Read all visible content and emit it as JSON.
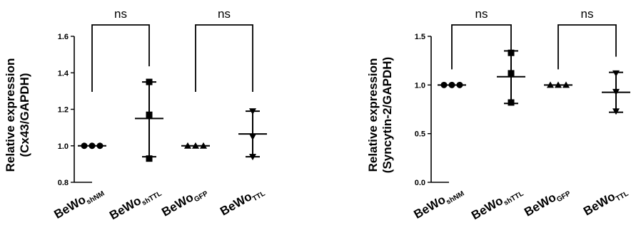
{
  "chart_data": [
    {
      "type": "scatter",
      "ylabel_lines": [
        "Relative expression",
        "(Cx43/GAPDH)"
      ],
      "ylim": [
        0.8,
        1.6
      ],
      "yticks": [
        "0.8",
        "1.0",
        "1.2",
        "1.4",
        "1.6"
      ],
      "categories": [
        {
          "base": "BeWo",
          "sub": "shNM"
        },
        {
          "base": "BeWo",
          "sub": "shTTL"
        },
        {
          "base": "BeWo",
          "sub": "GFP"
        },
        {
          "base": "BeWo",
          "sub": "TTL"
        }
      ],
      "markers": [
        "circle",
        "square",
        "triangle-up",
        "triangle-down"
      ],
      "points": [
        [
          1.0,
          1.0,
          1.0
        ],
        [
          1.35,
          1.17,
          0.93
        ],
        [
          1.0,
          1.0,
          1.0
        ],
        [
          1.19,
          1.05,
          0.94
        ]
      ],
      "mean": [
        1.0,
        1.15,
        1.0,
        1.065
      ],
      "error_low": [
        1.0,
        0.94,
        1.0,
        0.94
      ],
      "error_high": [
        1.0,
        1.35,
        1.0,
        1.19
      ],
      "comparisons": [
        {
          "groups": [
            0,
            1
          ],
          "label": "ns"
        },
        {
          "groups": [
            2,
            3
          ],
          "label": "ns"
        }
      ]
    },
    {
      "type": "scatter",
      "ylabel_lines": [
        "Relative expression",
        "(Syncytin-2/GAPDH)"
      ],
      "ylim": [
        0.0,
        1.5
      ],
      "yticks": [
        "0.0",
        "0.5",
        "1.0",
        "1.5"
      ],
      "categories": [
        {
          "base": "BeWo",
          "sub": "shNM"
        },
        {
          "base": "BeWo",
          "sub": "shTTL"
        },
        {
          "base": "BeWo",
          "sub": "GFP"
        },
        {
          "base": "BeWo",
          "sub": "TTL"
        }
      ],
      "markers": [
        "circle",
        "square",
        "triangle-up",
        "triangle-down"
      ],
      "points": [
        [
          1.0,
          1.0,
          1.0
        ],
        [
          1.33,
          1.12,
          0.82
        ],
        [
          1.0,
          1.0,
          1.0
        ],
        [
          1.12,
          0.93,
          0.73
        ]
      ],
      "mean": [
        1.0,
        1.085,
        1.0,
        0.925
      ],
      "error_low": [
        1.0,
        0.81,
        1.0,
        0.72
      ],
      "error_high": [
        1.0,
        1.35,
        1.0,
        1.13
      ],
      "comparisons": [
        {
          "groups": [
            0,
            1
          ],
          "label": "ns"
        },
        {
          "groups": [
            2,
            3
          ],
          "label": "ns"
        }
      ]
    }
  ]
}
